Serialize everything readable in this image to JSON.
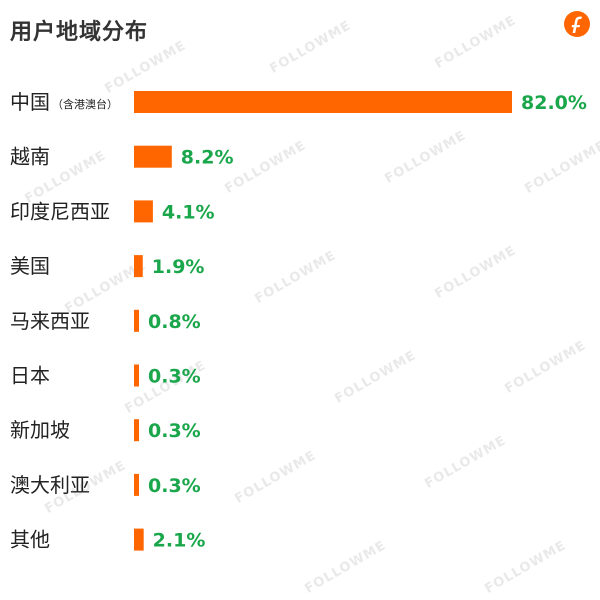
{
  "title": "用户地域分布",
  "watermark": "FOLLOWME",
  "colors": {
    "bar": "#ff6600",
    "value_text": "#1aa64a",
    "logo": "#ff6600"
  },
  "logo_icon": "followme-logo-icon",
  "chart_data": {
    "type": "bar",
    "orientation": "horizontal",
    "title": "用户地域分布",
    "categories": [
      "中国",
      "越南",
      "印度尼西亚",
      "美国",
      "马来西亚",
      "日本",
      "新加坡",
      "澳大利亚",
      "其他"
    ],
    "category_notes": [
      "（含港澳台）",
      "",
      "",
      "",
      "",
      "",
      "",
      "",
      ""
    ],
    "values": [
      82.0,
      8.2,
      4.1,
      1.9,
      0.8,
      0.3,
      0.3,
      0.3,
      2.1
    ],
    "value_labels": [
      "82.0%",
      "8.2%",
      "4.1%",
      "1.9%",
      "0.8%",
      "0.3%",
      "0.3%",
      "0.3%",
      "2.1%"
    ],
    "xlim": [
      0,
      82.0
    ],
    "grid": false,
    "legend": "none"
  }
}
